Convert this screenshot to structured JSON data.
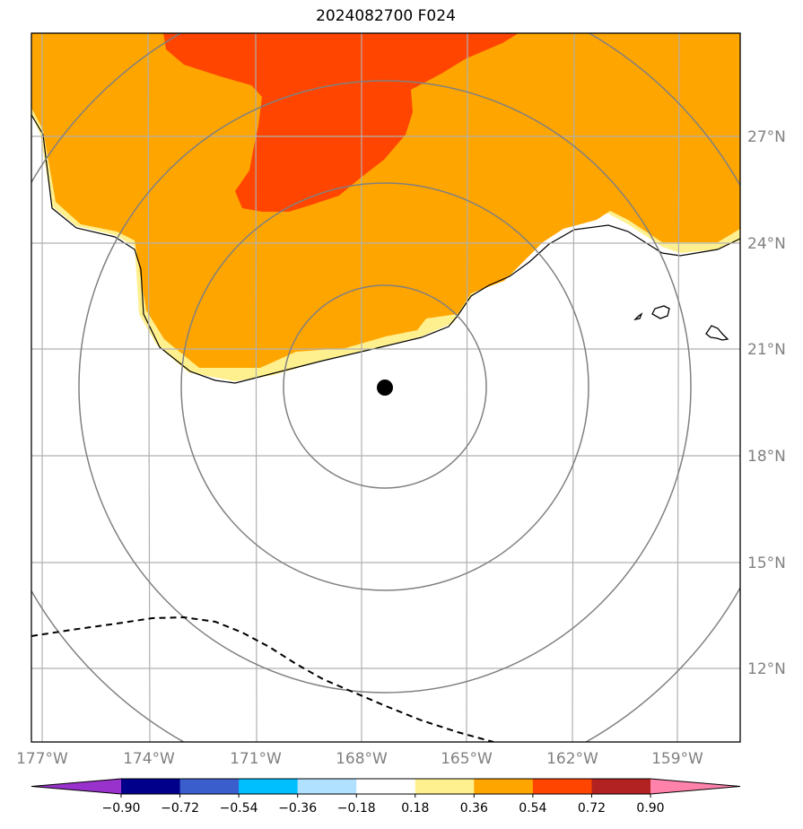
{
  "title": "2024082700 F024",
  "map": {
    "lon_ticks": [
      "177°W",
      "174°W",
      "171°W",
      "168°W",
      "165°W",
      "162°W",
      "159°W"
    ],
    "lat_ticks": [
      "27°N",
      "24°N",
      "21°N",
      "18°N",
      "15°N",
      "12°N"
    ],
    "center": {
      "lon": -167.7,
      "lat": 19.8
    },
    "ring_color": "#808080",
    "grid_color": "#b0b0b0",
    "coast_color": "#000000"
  },
  "colorbar": {
    "labels": [
      "−0.90",
      "−0.72",
      "−0.54",
      "−0.36",
      "−0.18",
      "0.18",
      "0.36",
      "0.54",
      "0.72",
      "0.90"
    ],
    "colors": [
      "#9932cc",
      "#00008b",
      "#3a5fcd",
      "#00bfff",
      "#b0e2ff",
      "#ffffff",
      "#fff08f",
      "#ffa500",
      "#ff4500",
      "#b22222",
      "#ff82ab"
    ]
  }
}
